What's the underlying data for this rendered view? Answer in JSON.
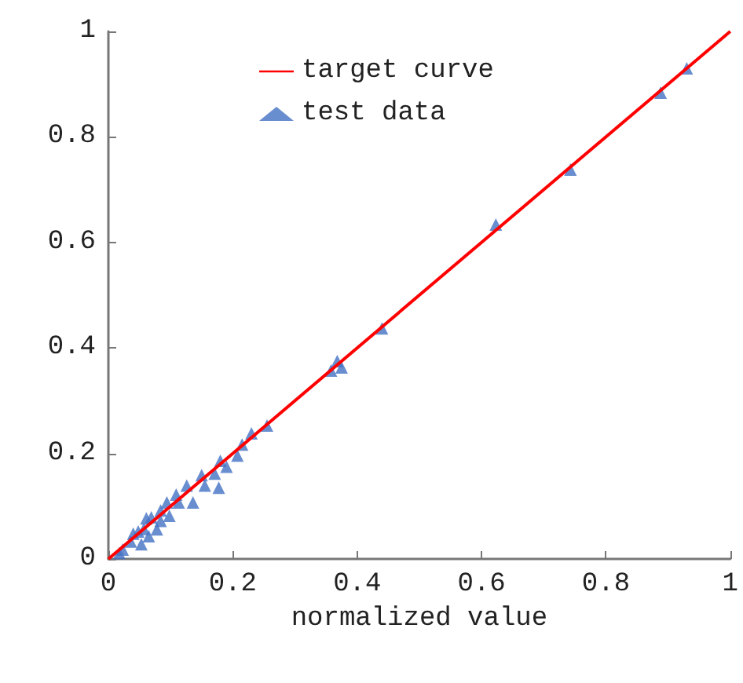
{
  "chart_data": {
    "type": "scatter",
    "xlabel": "normalized value",
    "xlim": [
      0,
      1
    ],
    "ylim": [
      0,
      1
    ],
    "xticks": [
      0,
      0.2,
      0.4,
      0.6,
      0.8,
      1
    ],
    "yticks": [
      0,
      0.2,
      0.4,
      0.6,
      0.8,
      1
    ],
    "grid": false,
    "legend": "top",
    "series": [
      {
        "name": "target curve",
        "type": "line",
        "color": "#ff0000",
        "marker": "none",
        "line_style": "solid",
        "x": [
          0,
          1
        ],
        "values": [
          0,
          1
        ]
      },
      {
        "name": "test data",
        "color": "#4472c4",
        "marker": "triangle",
        "x": [
          0.93,
          0.888,
          0.743,
          0.623,
          0.44,
          0.368,
          0.358,
          0.375,
          0.255,
          0.23,
          0.215,
          0.2075,
          0.19,
          0.18,
          0.1775,
          0.171,
          0.15,
          0.155,
          0.136,
          0.126,
          0.109,
          0.113,
          0.094,
          0.084,
          0.084,
          0.069,
          0.061,
          0.057,
          0.048,
          0.04,
          0.053,
          0.036,
          0.023,
          0.0175,
          0.098,
          0.078,
          0.065
        ],
        "values": [
          0.93,
          0.884,
          0.738,
          0.634,
          0.437,
          0.375,
          0.357,
          0.363,
          0.253,
          0.238,
          0.217,
          0.196,
          0.175,
          0.186,
          0.135,
          0.162,
          0.159,
          0.139,
          0.107,
          0.139,
          0.122,
          0.107,
          0.107,
          0.092,
          0.072,
          0.079,
          0.077,
          0.057,
          0.052,
          0.048,
          0.028,
          0.033,
          0.018,
          0.011,
          0.082,
          0.056,
          0.043
        ]
      }
    ]
  }
}
